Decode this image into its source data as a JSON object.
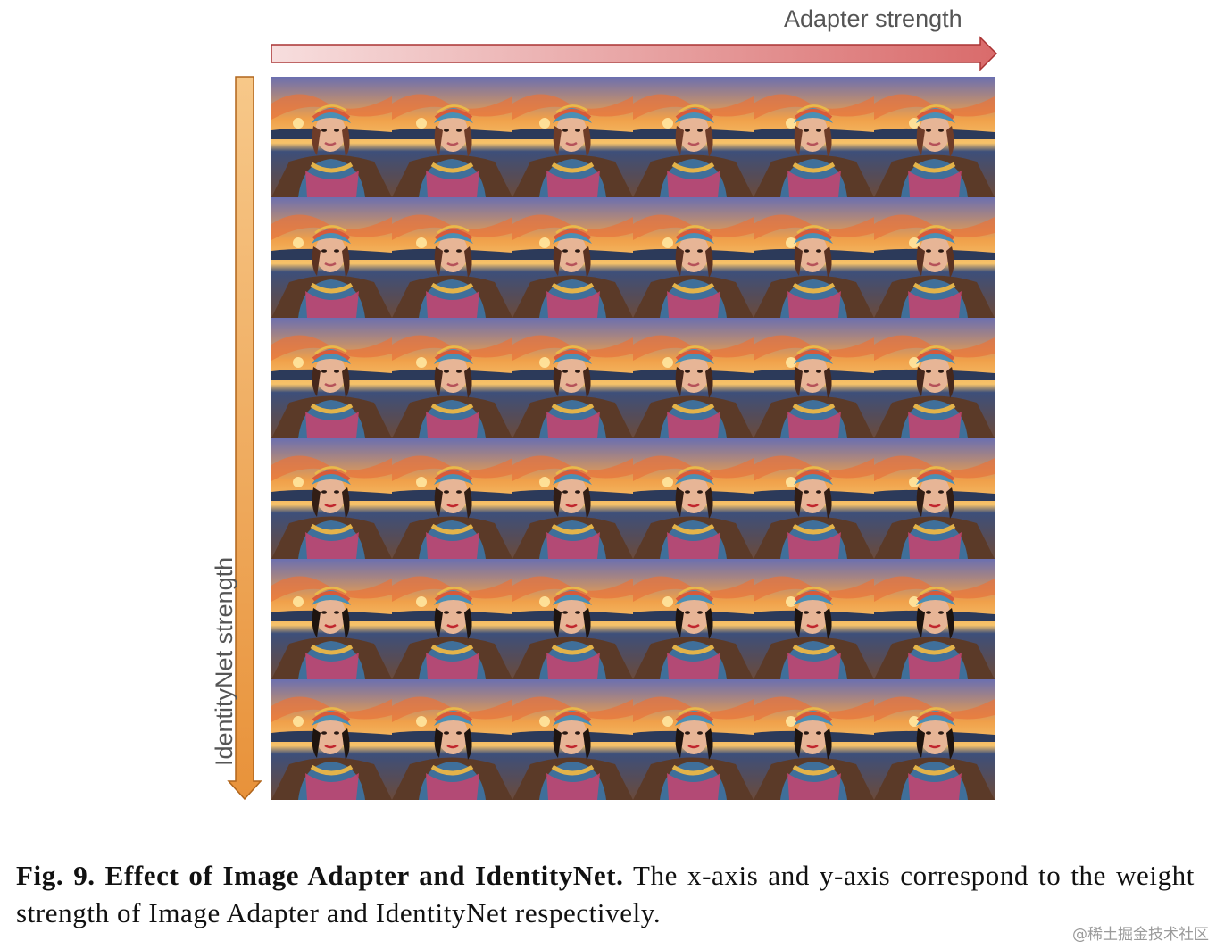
{
  "figure": {
    "x_axis_label": "Adapter strength",
    "y_axis_label": "IdentityNet strength",
    "grid": {
      "rows": 6,
      "cols": 6
    },
    "colors": {
      "x_arrow": "#d96b6b",
      "y_arrow": "#e8923a"
    }
  },
  "caption": {
    "lead": "Fig. 9. Effect of Image Adapter and IdentityNet.",
    "body": " The x-axis and y-axis correspond to the weight strength of Image Adapter and IdentityNet respectively."
  },
  "watermark": "@稀土掘金技术社区"
}
